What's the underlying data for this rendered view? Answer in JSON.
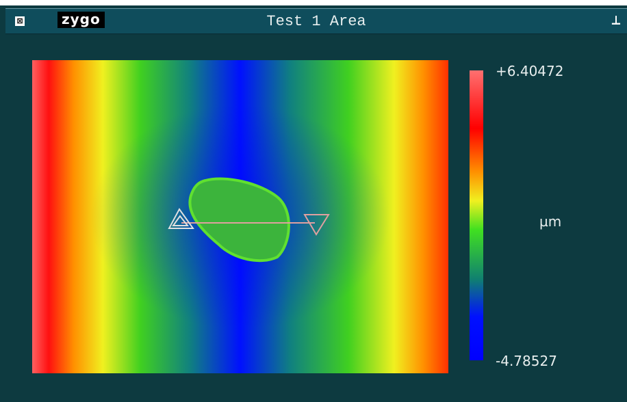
{
  "window": {
    "logo": "zygo",
    "title": "Test 1 Area"
  },
  "colorbar": {
    "max_label": "+6.40472",
    "unit": "µm",
    "min_label": "-4.78527"
  }
}
